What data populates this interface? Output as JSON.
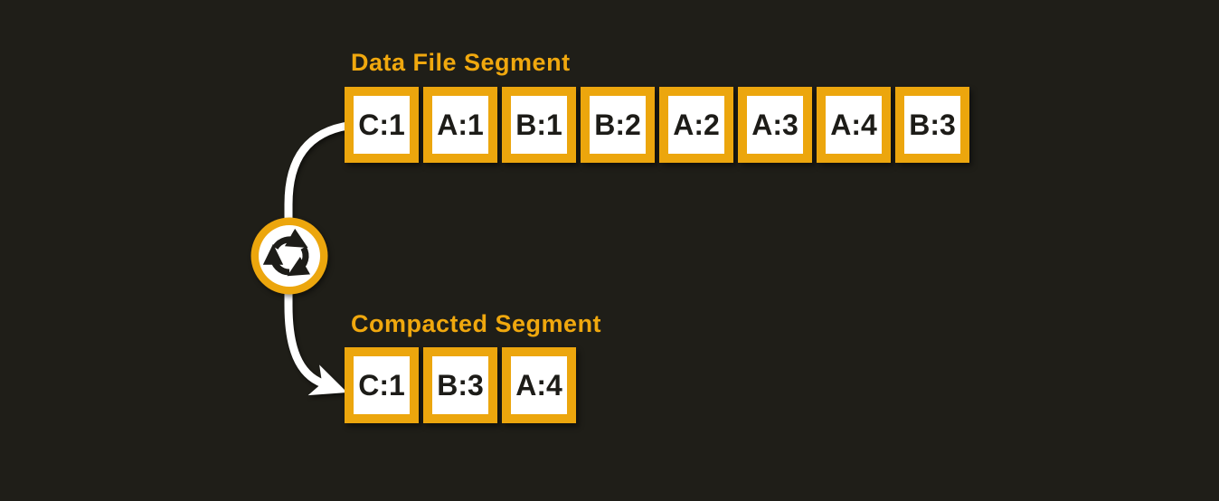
{
  "colors": {
    "background": "#1f1e18",
    "accent": "#eca60d",
    "title_color": "#f0a80e",
    "cell_background": "#ffffff",
    "cell_text": "#1d1c18",
    "arrow": "#ffffff"
  },
  "data_file_segment": {
    "title": "Data File Segment",
    "cells": [
      "C:1",
      "A:1",
      "B:1",
      "B:2",
      "A:2",
      "A:3",
      "A:4",
      "B:3"
    ]
  },
  "compacted_segment": {
    "title": "Compacted Segment",
    "cells": [
      "C:1",
      "B:3",
      "A:4"
    ]
  },
  "icons": {
    "compaction_icon": "cycle-arrows-icon",
    "flow_arrow": "curved-down-arrow-icon"
  }
}
